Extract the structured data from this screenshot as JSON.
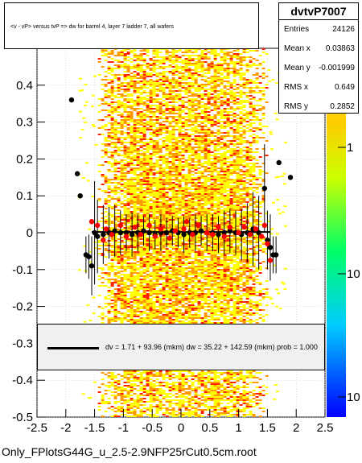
{
  "title_box": {
    "text": "<v - vP>       versus  tvP =>  dw for barrel 4, layer 7 ladder 7, all wafers"
  },
  "stats": {
    "name": "dvtvP7007",
    "rows": [
      {
        "label": "Entries",
        "value": "24126"
      },
      {
        "label": "Mean x",
        "value": "0.03863"
      },
      {
        "label": "Mean y",
        "value": "-0.001999"
      },
      {
        "label": "RMS x",
        "value": "0.649"
      },
      {
        "label": "RMS y",
        "value": "0.2852"
      }
    ]
  },
  "fit_legend": {
    "text": "dv =    1.71 + 93.96 (mkm) dw =   35.22 + 142.59 (mkm) prob = 1.000"
  },
  "file_title": "Only_FPlotsG44G_u_2.5-2.9NFP25rCut0.5cm.root",
  "colors": {
    "band_low": "#ffff00",
    "band_mid": "#ff9900",
    "band_high": "#ff2200",
    "fit_line": "#000000",
    "profile_red": "#ff0000"
  },
  "chart_data": {
    "type": "scatter",
    "title": "<v - vP>       versus  tvP =>  dw for barrel 4, layer 7 ladder 7, all wafers",
    "xlim": [
      -2.5,
      2.5
    ],
    "ylim": [
      -0.5,
      0.5
    ],
    "x_ticks": [
      "-2.5",
      "-2",
      "-1.5",
      "-1",
      "-0.5",
      "0",
      "0.5",
      "1",
      "1.5",
      "2",
      "2.5"
    ],
    "y_ticks": [
      "-0.5",
      "-0.4",
      "-0.3",
      "-0.2",
      "-0.1",
      "0",
      "0.1",
      "0.2",
      "0.3",
      "0.4"
    ],
    "z_ticks": [
      "1",
      "10",
      "10"
    ],
    "log_z": true,
    "grid": true,
    "band_x_range": [
      -1.5,
      1.5
    ],
    "series": [
      {
        "name": "profile_black",
        "points": [
          [
            -1.9,
            0.36
          ],
          [
            -1.8,
            0.16
          ],
          [
            -1.75,
            0.1
          ],
          [
            -1.65,
            -0.06
          ],
          [
            -1.6,
            -0.065
          ],
          [
            -1.55,
            -0.09
          ],
          [
            -1.5,
            0.0
          ],
          [
            -1.45,
            -0.01
          ],
          [
            -1.35,
            -0.005
          ],
          [
            -1.25,
            0.0
          ],
          [
            -1.15,
            0.005
          ],
          [
            -1.05,
            0.0
          ],
          [
            -0.95,
            0.0
          ],
          [
            -0.85,
            -0.005
          ],
          [
            -0.75,
            0.0
          ],
          [
            -0.65,
            0.005
          ],
          [
            -0.55,
            0.0
          ],
          [
            -0.45,
            -0.005
          ],
          [
            -0.35,
            0.0
          ],
          [
            -0.25,
            0.0
          ],
          [
            -0.15,
            0.005
          ],
          [
            -0.05,
            0.0
          ],
          [
            0.05,
            -0.005
          ],
          [
            0.15,
            0.0
          ],
          [
            0.25,
            0.0
          ],
          [
            0.35,
            0.005
          ],
          [
            0.45,
            0.0
          ],
          [
            0.55,
            0.0
          ],
          [
            0.65,
            -0.005
          ],
          [
            0.75,
            0.0
          ],
          [
            0.85,
            0.005
          ],
          [
            0.95,
            0.0
          ],
          [
            1.05,
            -0.005
          ],
          [
            1.15,
            0.0
          ],
          [
            1.25,
            0.01
          ],
          [
            1.35,
            0.0
          ],
          [
            1.45,
            0.12
          ],
          [
            1.5,
            -0.02
          ],
          [
            1.55,
            -0.04
          ],
          [
            1.6,
            -0.06
          ],
          [
            1.65,
            -0.06
          ],
          [
            1.7,
            0.19
          ],
          [
            1.75,
            0.36
          ],
          [
            1.9,
            0.15
          ]
        ],
        "errors": [
          0.0,
          0.0,
          0.0,
          0.05,
          0.06,
          0.08,
          0.14,
          0.1,
          0.08,
          0.07,
          0.07,
          0.06,
          0.05,
          0.06,
          0.05,
          0.04,
          0.05,
          0.04,
          0.05,
          0.04,
          0.04,
          0.04,
          0.05,
          0.04,
          0.05,
          0.04,
          0.05,
          0.05,
          0.05,
          0.06,
          0.06,
          0.06,
          0.07,
          0.08,
          0.1,
          0.1,
          0.12,
          0.08,
          0.09,
          0.05,
          0.05,
          0.0,
          0.0,
          0.0
        ]
      },
      {
        "name": "profile_red",
        "points": [
          [
            -1.55,
            0.03
          ],
          [
            -1.45,
            0.02
          ],
          [
            -1.35,
            -0.02
          ],
          [
            -1.3,
            0.01
          ],
          [
            -1.2,
            -0.005
          ],
          [
            -1.05,
            0.02
          ],
          [
            -0.95,
            -0.01
          ],
          [
            -0.8,
            0.015
          ],
          [
            -0.7,
            -0.005
          ],
          [
            -0.55,
            0.02
          ],
          [
            -0.45,
            -0.01
          ],
          [
            -0.35,
            0.01
          ],
          [
            -0.2,
            -0.015
          ],
          [
            -0.1,
            0.005
          ],
          [
            0.05,
            0.01
          ],
          [
            0.1,
            0.03
          ],
          [
            0.2,
            -0.005
          ],
          [
            0.3,
            0.02
          ],
          [
            0.45,
            0.0
          ],
          [
            0.55,
            -0.005
          ],
          [
            0.65,
            0.015
          ],
          [
            0.75,
            -0.01
          ],
          [
            0.85,
            0.015
          ],
          [
            1.0,
            0.0
          ],
          [
            1.1,
            0.015
          ],
          [
            1.2,
            -0.005
          ],
          [
            1.3,
            0.01
          ],
          [
            1.4,
            -0.01
          ],
          [
            1.45,
            0.02
          ],
          [
            1.5,
            -0.03
          ],
          [
            1.55,
            -0.075
          ]
        ]
      },
      {
        "name": "fit",
        "type": "line",
        "x": [
          -1.55,
          1.55
        ],
        "y": [
          0.002,
          0.002
        ]
      }
    ]
  }
}
